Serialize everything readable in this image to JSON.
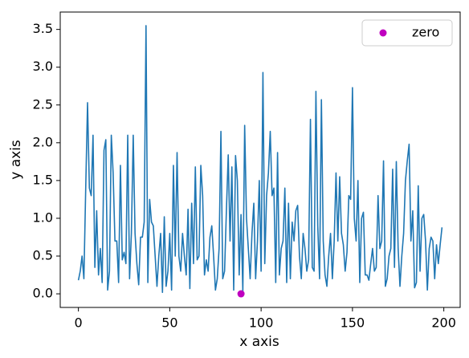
{
  "chart_data": {
    "type": "line",
    "xlabel": "x axis",
    "ylabel": "y axis",
    "xlim": [
      -9.95,
      208.95
    ],
    "ylim": [
      -0.18,
      3.73
    ],
    "xticks": [
      0,
      50,
      100,
      150,
      200
    ],
    "yticks": [
      {
        "value": 0,
        "label": "0.0"
      },
      0.5,
      {
        "value": 1,
        "label": "1.0"
      },
      1.5,
      {
        "value": 2,
        "label": "2.0"
      },
      2.5,
      {
        "value": 3,
        "label": "3.0"
      },
      3.5
    ],
    "legend": "upper right",
    "series": [
      {
        "type": "line",
        "color": "#1f77b4",
        "x": [
          0,
          1,
          2,
          3,
          4,
          5,
          6,
          7,
          8,
          9,
          10,
          11,
          12,
          13,
          14,
          15,
          16,
          17,
          18,
          19,
          20,
          21,
          22,
          23,
          24,
          25,
          26,
          27,
          28,
          29,
          30,
          31,
          32,
          33,
          34,
          35,
          36,
          37,
          38,
          39,
          40,
          41,
          42,
          43,
          44,
          45,
          46,
          47,
          48,
          49,
          50,
          51,
          52,
          53,
          54,
          55,
          56,
          57,
          58,
          59,
          60,
          61,
          62,
          63,
          64,
          65,
          66,
          67,
          68,
          69,
          70,
          71,
          72,
          73,
          74,
          75,
          76,
          77,
          78,
          79,
          80,
          81,
          82,
          83,
          84,
          85,
          86,
          87,
          88,
          89,
          90,
          91,
          92,
          93,
          94,
          95,
          96,
          97,
          98,
          99,
          100,
          101,
          102,
          103,
          104,
          105,
          106,
          107,
          108,
          109,
          110,
          111,
          112,
          113,
          114,
          115,
          116,
          117,
          118,
          119,
          120,
          121,
          122,
          123,
          124,
          125,
          126,
          127,
          128,
          129,
          130,
          131,
          132,
          133,
          134,
          135,
          136,
          137,
          138,
          139,
          140,
          141,
          142,
          143,
          144,
          145,
          146,
          147,
          148,
          149,
          150,
          151,
          152,
          153,
          154,
          155,
          156,
          157,
          158,
          159,
          160,
          161,
          162,
          163,
          164,
          165,
          166,
          167,
          168,
          169,
          170,
          171,
          172,
          173,
          174,
          175,
          176,
          177,
          178,
          179,
          180,
          181,
          182,
          183,
          184,
          185,
          186,
          187,
          188,
          189,
          190,
          191,
          192,
          193,
          194,
          195,
          196,
          197,
          198,
          199
        ],
        "values": [
          0.18,
          0.3,
          0.5,
          0.2,
          1.4,
          2.53,
          1.4,
          1.3,
          2.1,
          0.35,
          1.1,
          0.25,
          0.6,
          0.15,
          1.9,
          2.04,
          0.05,
          0.3,
          2.1,
          1.6,
          0.7,
          0.7,
          0.15,
          1.7,
          0.45,
          0.55,
          0.4,
          2.1,
          0.2,
          0.8,
          2.1,
          0.8,
          0.4,
          0.12,
          0.75,
          0.75,
          0.95,
          3.55,
          0.15,
          1.25,
          0.95,
          0.9,
          0.5,
          0.1,
          0.5,
          0.8,
          0.02,
          1.02,
          0.1,
          0.3,
          0.8,
          0.05,
          1.7,
          0.5,
          1.87,
          0.5,
          0.3,
          0.8,
          0.5,
          0.25,
          1.12,
          0.07,
          1.2,
          0.4,
          1.68,
          0.45,
          0.5,
          1.7,
          1.3,
          0.25,
          0.45,
          0.3,
          0.75,
          0.9,
          0.5,
          0.05,
          0.2,
          0.6,
          2.15,
          0.2,
          0.3,
          1.1,
          1.84,
          0.7,
          1.68,
          0.05,
          1.83,
          1.5,
          0.25,
          1.05,
          0.03,
          2.23,
          1.0,
          0.6,
          0.2,
          0.8,
          1.2,
          0.2,
          0.7,
          1.5,
          0.3,
          2.93,
          0.4,
          1.3,
          1.6,
          2.15,
          1.3,
          1.4,
          0.15,
          1.87,
          0.25,
          0.6,
          0.7,
          1.4,
          0.15,
          1.2,
          0.2,
          0.95,
          0.7,
          1.1,
          1.17,
          0.5,
          0.2,
          0.8,
          0.6,
          0.3,
          0.45,
          2.31,
          0.35,
          0.3,
          2.68,
          0.9,
          0.2,
          2.57,
          0.7,
          0.25,
          0.1,
          0.5,
          0.8,
          0.2,
          0.7,
          1.6,
          0.7,
          1.55,
          0.8,
          0.65,
          0.3,
          0.55,
          1.3,
          1.25,
          2.73,
          1.0,
          0.7,
          1.5,
          0.15,
          1.0,
          1.08,
          0.25,
          0.25,
          0.18,
          0.4,
          0.6,
          0.3,
          0.35,
          1.3,
          0.6,
          0.7,
          1.76,
          0.1,
          0.2,
          0.5,
          0.6,
          1.65,
          0.35,
          1.75,
          0.6,
          0.1,
          0.5,
          0.8,
          1.5,
          1.76,
          1.98,
          0.7,
          1.1,
          0.08,
          0.15,
          1.43,
          0.3,
          1.0,
          1.05,
          0.7,
          0.05,
          0.6,
          0.75,
          0.7,
          0.2,
          0.65,
          0.4,
          0.65,
          0.88
        ]
      },
      {
        "type": "scatter",
        "name": "zero",
        "color": "#bf00bf",
        "x": [
          89
        ],
        "values": [
          0
        ]
      }
    ]
  }
}
